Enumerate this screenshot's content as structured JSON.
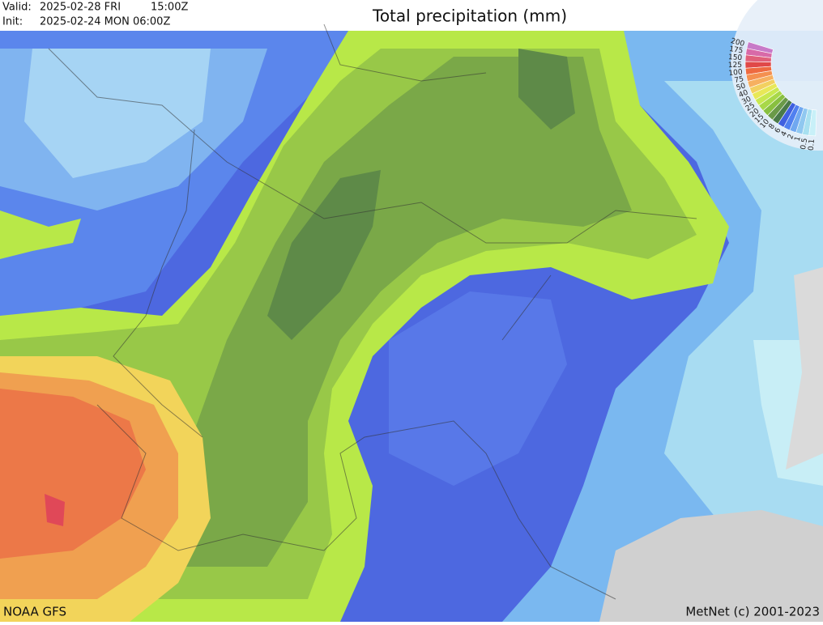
{
  "header": {
    "valid_label": "Valid:",
    "valid_date": "2025-02-28 FRI",
    "valid_time": "15:00Z",
    "init_label": "Init:",
    "init_date": "2025-02-24 MON 06:00Z",
    "title": "Total precipitation (mm)"
  },
  "legend": {
    "steps": [
      {
        "label": 200,
        "color": "#c87ac8"
      },
      {
        "label": 175,
        "color": "#d86aa8"
      },
      {
        "label": 150,
        "color": "#e0607a"
      },
      {
        "label": 125,
        "color": "#e04848"
      },
      {
        "label": 100,
        "color": "#ee6a40"
      },
      {
        "label": 75,
        "color": "#f49050"
      },
      {
        "label": 50,
        "color": "#f6b060"
      },
      {
        "label": 40,
        "color": "#f2d060"
      },
      {
        "label": 30,
        "color": "#e8e858"
      },
      {
        "label": 25,
        "color": "#c8e850"
      },
      {
        "label": 20,
        "color": "#a8d848"
      },
      {
        "label": 15,
        "color": "#88c040"
      },
      {
        "label": 10,
        "color": "#6a9a48"
      },
      {
        "label": 8,
        "color": "#4a7a48"
      },
      {
        "label": 6,
        "color": "#4060e0"
      },
      {
        "label": 4,
        "color": "#5080f0"
      },
      {
        "label": 2,
        "color": "#70a8f0"
      },
      {
        "label": 1,
        "color": "#90c8f0"
      },
      {
        "label": 0.5,
        "color": "#a8e0f0"
      },
      {
        "label": 0.1,
        "color": "#c8f0f8"
      }
    ]
  },
  "footer": {
    "source": "NOAA GFS",
    "copyright": "MetNet (c) 2001-2023"
  }
}
